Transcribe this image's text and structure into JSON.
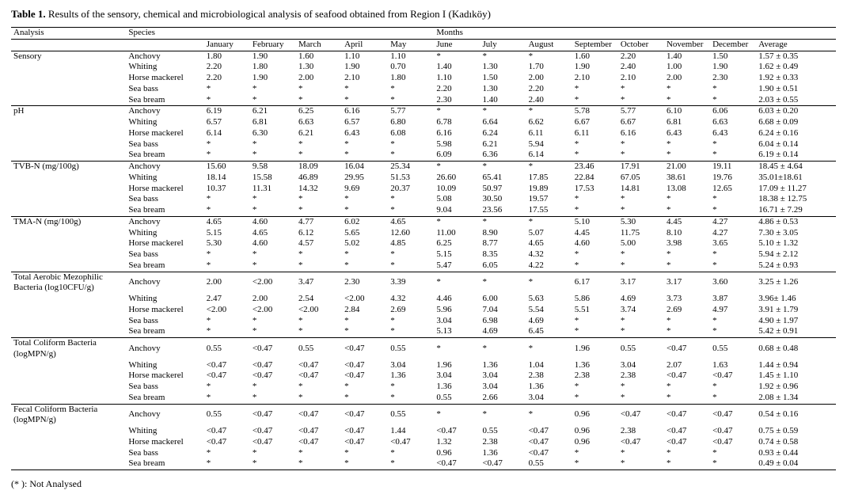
{
  "title_label": "Table 1.",
  "title_text": "Results of the sensory, chemical and microbiological analysis of seafood obtained from Region I (Kadıköy)",
  "footnote": "(* ):  Not Analysed",
  "headers": {
    "analysis": "Analysis",
    "species": "Species",
    "months_label": "Months",
    "months": [
      "January",
      "February",
      "March",
      "April",
      "May",
      "June",
      "July",
      "August",
      "September",
      "October",
      "November",
      "December"
    ],
    "average": "Average"
  },
  "species_names": [
    "Anchovy",
    "Whiting",
    "Horse mackerel",
    "Sea bass",
    "Sea bream"
  ],
  "sections": [
    {
      "name": "Sensory",
      "rows": [
        [
          "1.80",
          "1.90",
          "1.60",
          "1.10",
          "1.10",
          "*",
          "*",
          "*",
          "1.60",
          "2.20",
          "1.40",
          "1.50",
          "1.57 ± 0.35"
        ],
        [
          "2.20",
          "1.80",
          "1.30",
          "1.90",
          "0.70",
          "1.40",
          "1.30",
          "1.70",
          "1.90",
          "2.40",
          "1.00",
          "1.90",
          "1.62 ± 0.49"
        ],
        [
          "2.20",
          "1.90",
          "2.00",
          "2.10",
          "1.80",
          "1.10",
          "1.50",
          "2.00",
          "2.10",
          "2.10",
          "2.00",
          "2.30",
          "1.92 ± 0.33"
        ],
        [
          "*",
          "*",
          "*",
          "*",
          "*",
          "2.20",
          "1.30",
          "2.20",
          "*",
          "*",
          "*",
          "*",
          "1.90 ± 0.51"
        ],
        [
          "*",
          "*",
          "*",
          "*",
          "*",
          "2.30",
          "1.40",
          "2.40",
          "*",
          "*",
          "*",
          "*",
          "2.03 ± 0.55"
        ]
      ]
    },
    {
      "name": "pH",
      "rows": [
        [
          "6.19",
          "6.21",
          "6.25",
          "6.16",
          "5.77",
          "*",
          "*",
          "*",
          "5.78",
          "5.77",
          "6.10",
          "6.06",
          "6.03 ± 0.20"
        ],
        [
          "6.57",
          "6.81",
          "6.63",
          "6.57",
          "6.80",
          "6.78",
          "6.64",
          "6.62",
          "6.67",
          "6.67",
          "6.81",
          "6.63",
          "6.68 ± 0.09"
        ],
        [
          "6.14",
          "6.30",
          "6.21",
          "6.43",
          "6.08",
          "6.16",
          "6.24",
          "6.11",
          "6.11",
          "6.16",
          "6.43",
          "6.43",
          "6.24 ± 0.16"
        ],
        [
          "*",
          "*",
          "*",
          "*",
          "*",
          "5.98",
          "6.21",
          "5.94",
          "*",
          "*",
          "*",
          "*",
          "6.04 ± 0.14"
        ],
        [
          "*",
          "*",
          "*",
          "*",
          "*",
          "6.09",
          "6.36",
          "6.14",
          "*",
          "*",
          "*",
          "*",
          "6.19 ± 0.14"
        ]
      ]
    },
    {
      "name": "TVB-N (mg/100g)",
      "rows": [
        [
          "15.60",
          "9.58",
          "18.09",
          "16.04",
          "25.34",
          "*",
          "*",
          "*",
          "23.46",
          "17.91",
          "21.00",
          "19.11",
          "18.45 ± 4.64"
        ],
        [
          "18.14",
          "15.58",
          "46.89",
          "29.95",
          "51.53",
          "26.60",
          "65.41",
          "17.85",
          "22.84",
          "67.05",
          "38.61",
          "19.76",
          "35.01±18.61"
        ],
        [
          "10.37",
          "11.31",
          "14.32",
          "9.69",
          "20.37",
          "10.09",
          "50.97",
          "19.89",
          "17.53",
          "14.81",
          "13.08",
          "12.65",
          "17.09 ± 11.27"
        ],
        [
          "*",
          "*",
          "*",
          "*",
          "*",
          "5.08",
          "30.50",
          "19.57",
          "*",
          "*",
          "*",
          "*",
          "18.38 ± 12.75"
        ],
        [
          "*",
          "*",
          "*",
          "*",
          "*",
          "9.04",
          "23.56",
          "17.55",
          "*",
          "*",
          "*",
          "*",
          "16.71 ± 7.29"
        ]
      ]
    },
    {
      "name": "TMA-N (mg/100g)",
      "rows": [
        [
          "4.65",
          "4.60",
          "4.77",
          "6.02",
          "4.65",
          "*",
          "*",
          "*",
          "5.10",
          "5.30",
          "4.45",
          "4.27",
          "4.86 ± 0.53"
        ],
        [
          "5.15",
          "4.65",
          "6.12",
          "5.65",
          "12.60",
          "11.00",
          "8.90",
          "5.07",
          "4.45",
          "11.75",
          "8.10",
          "4.27",
          "7.30 ± 3.05"
        ],
        [
          "5.30",
          "4.60",
          "4.57",
          "5.02",
          "4.85",
          "6.25",
          "8.77",
          "4.65",
          "4.60",
          "5.00",
          "3.98",
          "3.65",
          "5.10 ± 1.32"
        ],
        [
          "*",
          "*",
          "*",
          "*",
          "*",
          "5.15",
          "8.35",
          "4.32",
          "*",
          "*",
          "*",
          "*",
          "5.94 ± 2.12"
        ],
        [
          "*",
          "*",
          "*",
          "*",
          "*",
          "5.47",
          "6.05",
          "4.22",
          "*",
          "*",
          "*",
          "*",
          "5.24 ± 0.93"
        ]
      ]
    },
    {
      "name": "Total Aerobic Mezophilic Bacteria (log10CFU/g)",
      "rows": [
        [
          "2.00",
          "<2.00",
          "3.47",
          "2.30",
          "3.39",
          "*",
          "*",
          "*",
          "6.17",
          "3.17",
          "3.17",
          "3.60",
          "3.25 ± 1.26"
        ],
        [
          "2.47",
          "2.00",
          "2.54",
          "<2.00",
          "4.32",
          "4.46",
          "6.00",
          "5.63",
          "5.86",
          "4.69",
          "3.73",
          "3.87",
          "3.96± 1.46"
        ],
        [
          "<2.00",
          "<2.00",
          "<2.00",
          "2.84",
          "2.69",
          "5.96",
          "7.04",
          "5.54",
          "5.51",
          "3.74",
          "2.69",
          "4.97",
          "3.91 ± 1.79"
        ],
        [
          "*",
          "*",
          "*",
          "*",
          "*",
          "3.04",
          "6.98",
          "4.69",
          "*",
          "*",
          "*",
          "*",
          "4.90 ± 1.97"
        ],
        [
          "*",
          "*",
          "*",
          "*",
          "*",
          "5.13",
          "4.69",
          "6.45",
          "*",
          "*",
          "*",
          "*",
          "5.42 ± 0.91"
        ]
      ]
    },
    {
      "name": "Total Coliform Bacteria (logMPN/g)",
      "rows": [
        [
          "0.55",
          "<0.47",
          "0.55",
          "<0.47",
          "0.55",
          "*",
          "*",
          "*",
          "1.96",
          "0.55",
          "<0.47",
          "0.55",
          "0.68 ± 0.48"
        ],
        [
          "<0.47",
          "<0.47",
          "<0.47",
          "<0.47",
          "3.04",
          "1.96",
          "1.36",
          "1.04",
          "1.36",
          "3.04",
          "2.07",
          "1.63",
          "1.44 ± 0.94"
        ],
        [
          "<0.47",
          "<0.47",
          "<0.47",
          "<0.47",
          "1.36",
          "3.04",
          "3.04",
          "2.38",
          "2.38",
          "2.38",
          "<0.47",
          "<0.47",
          "1.45 ± 1.10"
        ],
        [
          "*",
          "*",
          "*",
          "*",
          "*",
          "1.36",
          "3.04",
          "1.36",
          "*",
          "*",
          "*",
          "*",
          "1.92 ± 0.96"
        ],
        [
          "*",
          "*",
          "*",
          "*",
          "*",
          "0.55",
          "2.66",
          "3.04",
          "*",
          "*",
          "*",
          "*",
          "2.08 ± 1.34"
        ]
      ]
    },
    {
      "name": "Fecal Coliform Bacteria (logMPN/g)",
      "rows": [
        [
          "0.55",
          "<0.47",
          "<0.47",
          "<0.47",
          "0.55",
          "*",
          "*",
          "*",
          "0.96",
          "<0.47",
          "<0.47",
          "<0.47",
          "0.54 ± 0.16"
        ],
        [
          "<0.47",
          "<0.47",
          "<0.47",
          "<0.47",
          "1.44",
          "<0.47",
          "0.55",
          "<0.47",
          "0.96",
          "2.38",
          "<0.47",
          "<0.47",
          "0.75 ± 0.59"
        ],
        [
          "<0.47",
          "<0.47",
          "<0.47",
          "<0.47",
          "<0.47",
          "1.32",
          "2.38",
          "<0.47",
          "0.96",
          "<0.47",
          "<0.47",
          "<0.47",
          "0.74 ± 0.58"
        ],
        [
          "*",
          "*",
          "*",
          "*",
          "*",
          "0.96",
          "1.36",
          "<0.47",
          "*",
          "*",
          "*",
          "*",
          "0.93 ± 0.44"
        ],
        [
          "",
          "",
          "",
          "",
          "",
          "",
          "",
          "",
          "",
          "",
          "",
          "",
          ""
        ],
        [
          "*",
          "*",
          "*",
          "*",
          "*",
          "<0.47",
          "<0.47",
          "0.55",
          "*",
          "*",
          "*",
          "*",
          "0.49 ± 0.04"
        ]
      ],
      "species_override": [
        "Anchovy",
        "Whiting",
        "Horse mackerel",
        "Sea bass",
        "",
        "Sea bream"
      ]
    }
  ]
}
